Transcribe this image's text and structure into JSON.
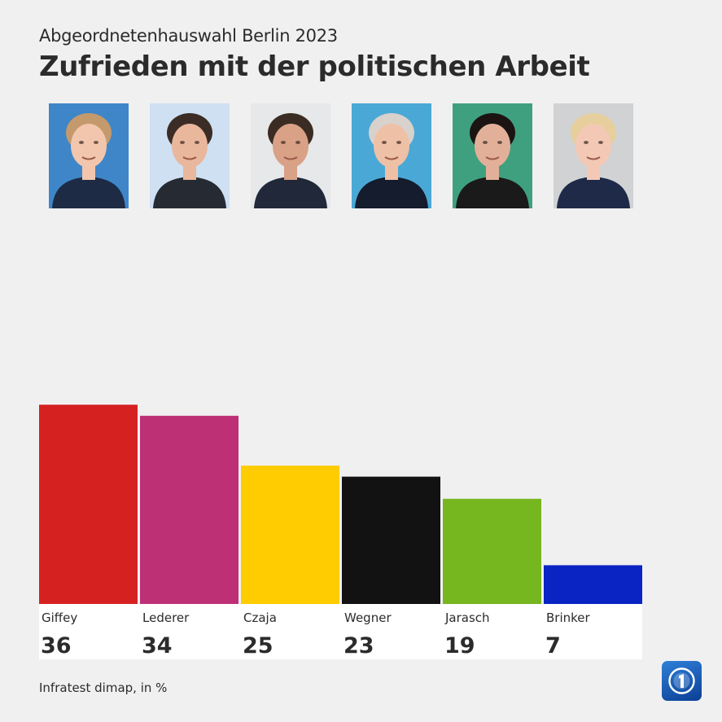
{
  "header": {
    "subtitle": "Abgeordnetenhauswahl Berlin 2023",
    "title": "Zufrieden mit der politischen Arbeit"
  },
  "source": "Infratest dimap, in %",
  "chart_data": {
    "type": "bar",
    "title": "Zufrieden mit der politischen Arbeit",
    "xlabel": "",
    "ylabel": "",
    "ylim": [
      0,
      100
    ],
    "grid": false,
    "legend": "none",
    "categories": [
      "Giffey",
      "Lederer",
      "Czaja",
      "Wegner",
      "Jarasch",
      "Brinker"
    ],
    "values": [
      36,
      34,
      25,
      23,
      19,
      7
    ],
    "value_labels": [
      "36",
      "34",
      "25",
      "23",
      "19",
      "7"
    ],
    "colors": [
      "#d52221",
      "#be3076",
      "#fecc00",
      "#121212",
      "#76b61f",
      "#0a23c3"
    ]
  },
  "portraits": [
    {
      "name": "Giffey",
      "bg": "#3e86c8",
      "skin": "#f1c6ad",
      "hair": "#c49a6c",
      "clothes": "#1d2b45"
    },
    {
      "name": "Lederer",
      "bg": "#cfe0f2",
      "skin": "#e9b79c",
      "hair": "#3b2d25",
      "clothes": "#262b33"
    },
    {
      "name": "Czaja",
      "bg": "#e6e8ea",
      "skin": "#d9a186",
      "hair": "#3a2c22",
      "clothes": "#20283a"
    },
    {
      "name": "Wegner",
      "bg": "#4aa8d6",
      "skin": "#eec0a6",
      "hair": "#d8d1cc",
      "clothes": "#141c2e"
    },
    {
      "name": "Jarasch",
      "bg": "#3fa07f",
      "skin": "#e2b099",
      "hair": "#1b1412",
      "clothes": "#1a1a1a"
    },
    {
      "name": "Brinker",
      "bg": "#d0d2d4",
      "skin": "#f3c9b6",
      "hair": "#e6cf9c",
      "clothes": "#1e2a48"
    }
  ],
  "logo": {
    "icon": "ard-logo-icon",
    "color": "#1466c4"
  }
}
